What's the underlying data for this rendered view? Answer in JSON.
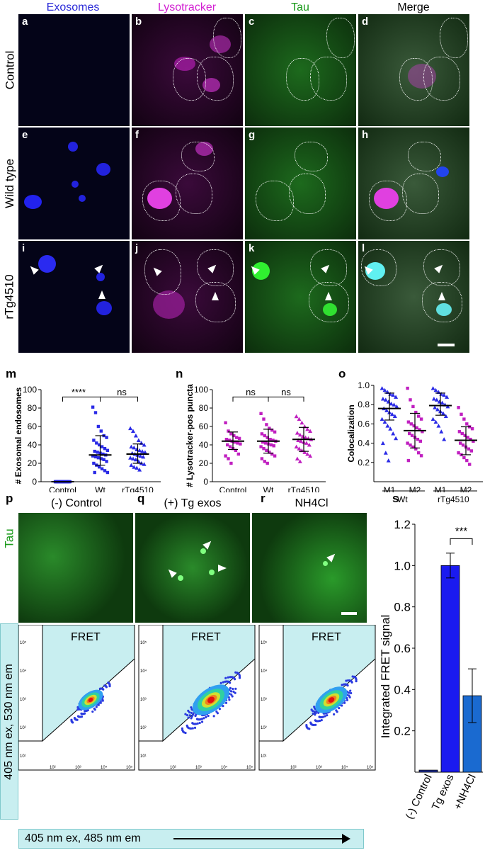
{
  "headers": {
    "exosomes": "Exosomes",
    "lysotracker": "Lysotracker",
    "tau": "Tau",
    "merge": "Merge"
  },
  "header_colors": {
    "exosomes": "#2a2ad8",
    "lysotracker": "#d21fd2",
    "tau": "#1a9a1a",
    "merge": "#000000"
  },
  "rows": [
    "Control",
    "Wild type",
    "rTg4510"
  ],
  "panel_letters": [
    "a",
    "b",
    "c",
    "d",
    "e",
    "f",
    "g",
    "h",
    "i",
    "j",
    "k",
    "l"
  ],
  "chart_data": [
    {
      "type": "scatter",
      "panel": "m",
      "ylabel": "# Exosomal endosomes",
      "ylim": [
        0,
        100
      ],
      "yticks": [
        "0",
        "20",
        "40",
        "60",
        "80",
        "100"
      ],
      "categories": [
        "Control",
        "Wt",
        "rTg4510"
      ],
      "means": [
        0,
        29,
        30
      ],
      "sd": [
        [
          0,
          0
        ],
        [
          18,
          50
        ],
        [
          20,
          41
        ]
      ],
      "series": [
        {
          "values": [
            0,
            0,
            0,
            0,
            0,
            0,
            0,
            0,
            0,
            0,
            0,
            0,
            0,
            0,
            0,
            0,
            0,
            0,
            0,
            0,
            0,
            0,
            0,
            0,
            0,
            0,
            0,
            0
          ]
        },
        {
          "values": [
            81,
            75,
            60,
            55,
            50,
            48,
            45,
            42,
            40,
            38,
            36,
            34,
            33,
            32,
            31,
            30,
            29,
            28,
            27,
            26,
            25,
            24,
            22,
            20,
            18,
            16,
            14,
            12,
            10,
            10
          ]
        },
        {
          "values": [
            58,
            55,
            50,
            45,
            42,
            40,
            38,
            37,
            35,
            34,
            33,
            32,
            31,
            30,
            29,
            28,
            27,
            26,
            25,
            24,
            22,
            20,
            19,
            18,
            16,
            15,
            13
          ]
        }
      ],
      "annotations": [
        "****",
        "ns"
      ]
    },
    {
      "type": "scatter",
      "panel": "n",
      "ylabel": "# Lysotracker-pos puncta",
      "ylim": [
        0,
        100
      ],
      "yticks": [
        "0",
        "20",
        "40",
        "60",
        "80",
        "100"
      ],
      "categories": [
        "Control",
        "Wt",
        "rTg4510"
      ],
      "means": [
        44,
        44,
        46
      ],
      "sd": [
        [
          35,
          54
        ],
        [
          31,
          57
        ],
        [
          33,
          59
        ]
      ],
      "series": [
        {
          "values": [
            64,
            55,
            52,
            50,
            48,
            47,
            46,
            45,
            44,
            43,
            42,
            41,
            40,
            38,
            36,
            34,
            30,
            28,
            25,
            20
          ]
        },
        {
          "values": [
            74,
            68,
            62,
            58,
            56,
            54,
            52,
            50,
            48,
            46,
            45,
            44,
            43,
            42,
            41,
            40,
            39,
            38,
            36,
            34,
            32,
            30,
            28,
            25,
            22,
            20
          ]
        },
        {
          "values": [
            71,
            68,
            64,
            60,
            57,
            55,
            53,
            51,
            49,
            48,
            47,
            46,
            45,
            44,
            43,
            42,
            40,
            38,
            36,
            34,
            32,
            30,
            28,
            25,
            22
          ]
        }
      ],
      "annotations": [
        "ns",
        "ns"
      ]
    },
    {
      "type": "scatter",
      "panel": "o",
      "ylabel": "Colocalization",
      "ylim": [
        0,
        1
      ],
      "yticks": [
        "0.2",
        "0.4",
        "0.6",
        "0.8",
        "1.0"
      ],
      "categories": [
        "M1",
        "M2",
        "M1",
        "M2"
      ],
      "groups": [
        "Wt",
        "rTg4510"
      ],
      "means": [
        0.76,
        0.53,
        0.79,
        0.43
      ],
      "sd": [
        [
          0.64,
          0.92
        ],
        [
          0.35,
          0.71
        ],
        [
          0.69,
          0.92
        ],
        [
          0.28,
          0.57
        ]
      ],
      "series": [
        {
          "values": [
            0.97,
            0.95,
            0.93,
            0.91,
            0.9,
            0.88,
            0.86,
            0.85,
            0.83,
            0.81,
            0.8,
            0.78,
            0.76,
            0.74,
            0.72,
            0.7,
            0.68,
            0.65,
            0.62,
            0.58,
            0.55,
            0.5,
            0.45,
            0.4,
            0.3,
            0.22
          ]
        },
        {
          "values": [
            0.97,
            0.85,
            0.78,
            0.72,
            0.68,
            0.65,
            0.62,
            0.6,
            0.58,
            0.56,
            0.54,
            0.52,
            0.5,
            0.48,
            0.46,
            0.44,
            0.42,
            0.4,
            0.38,
            0.36,
            0.34,
            0.3,
            0.27,
            0.22
          ]
        },
        {
          "values": [
            0.97,
            0.95,
            0.93,
            0.91,
            0.9,
            0.88,
            0.86,
            0.85,
            0.83,
            0.82,
            0.8,
            0.78,
            0.77,
            0.75,
            0.73,
            0.71,
            0.68,
            0.65,
            0.62,
            0.58,
            0.52,
            0.44
          ]
        },
        {
          "values": [
            0.77,
            0.7,
            0.65,
            0.6,
            0.57,
            0.55,
            0.52,
            0.5,
            0.48,
            0.46,
            0.44,
            0.42,
            0.4,
            0.38,
            0.36,
            0.34,
            0.32,
            0.3,
            0.28,
            0.25,
            0.22,
            0.18
          ]
        }
      ]
    },
    {
      "type": "bar",
      "panel": "s",
      "ylabel": "Integrated FRET signal",
      "ylim": [
        0,
        1.2
      ],
      "yticks": [
        "0.2",
        "0.4",
        "0.6",
        "0.8",
        "1.0",
        "1.2"
      ],
      "categories": [
        "(-) Control",
        "Tg exos",
        "+NH4Cl"
      ],
      "values": [
        0.01,
        1.0,
        0.37
      ],
      "err": [
        0.0,
        0.06,
        0.13
      ],
      "colors": [
        "#1f2f9a",
        "#1a1af0",
        "#1a6ad0"
      ],
      "annotations": [
        "***"
      ]
    }
  ],
  "panel_labels": {
    "m": "m",
    "n": "n",
    "o": "o",
    "p": "p",
    "q": "q",
    "r": "r",
    "s": "s"
  },
  "bottom": {
    "titles": [
      "(-) Control",
      "(+) Tg exos",
      "NH4Cl"
    ],
    "tau": "Tau",
    "fret": "FRET",
    "yaxis": "405 nm ex, 530 nm em",
    "xaxis": "405 nm ex, 485 nm em"
  },
  "facs_ticks": {
    "x": [
      "10²",
      "10³",
      "10⁴",
      "10⁵"
    ],
    "y": [
      "10¹",
      "10²",
      "10³",
      "10⁴",
      "10⁵"
    ]
  },
  "group_labels": {
    "wt": "Wt",
    "rtg": "rTg4510"
  }
}
